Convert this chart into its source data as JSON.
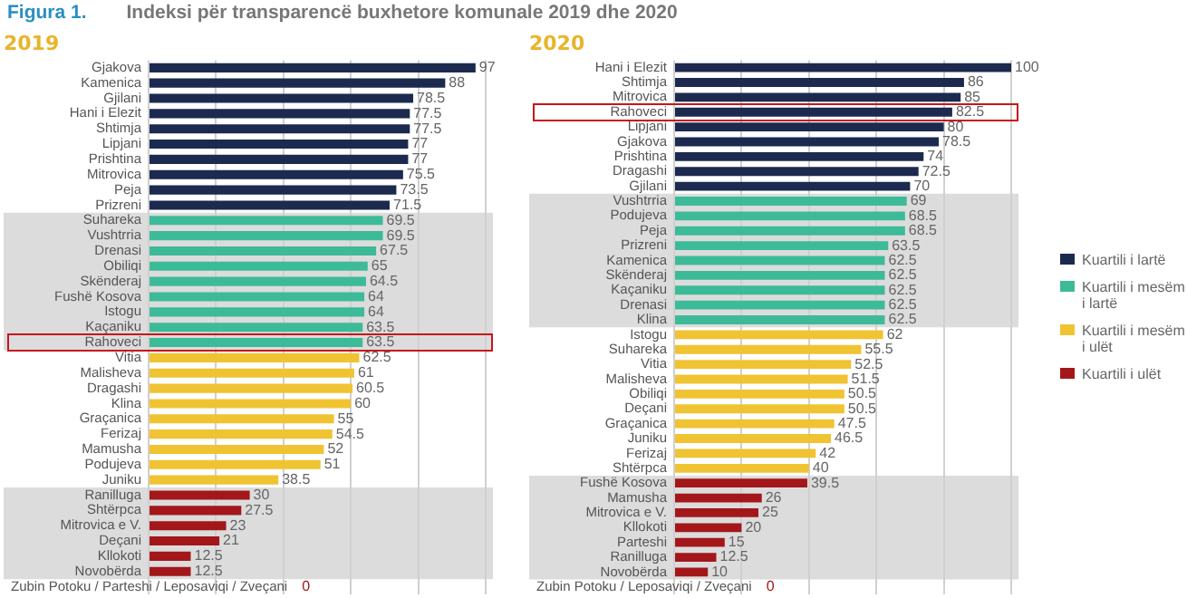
{
  "chart_data": [
    {
      "type": "bar",
      "orientation": "horizontal",
      "stacked": true,
      "title": "Indeksi për transparencë buxhetore komunale 2019 dhe 2020",
      "annotations": [
        "Figura 1.",
        "0"
      ],
      "subtitle": "2019",
      "categories": [
        "Gjakova",
        "Kamenica",
        "Gjilani",
        "Hani i Elezit",
        "Shtimja",
        "Lipjani",
        "Prishtina",
        "Mitrovica",
        "Peja",
        "Prizreni",
        "Suhareka",
        "Vushtrria",
        "Drenasi",
        "Obiliqi",
        "Skënderaj",
        "Fushë Kosova",
        "Istogu",
        "Kaçaniku",
        "Rahoveci",
        "Vitia",
        "Malisheva",
        "Dragashi",
        "Klina",
        "Graçanica",
        "Ferizaj",
        "Mamusha",
        "Podujeva",
        "Juniku",
        "Ranilluga",
        "Shtërpca",
        "Mitrovica e V.",
        "Deçani",
        "Kllokoti",
        "Novobërda",
        "Zubin Potoku / Parteshi / Leposaviqi / Zveçani"
      ],
      "series": [
        {
          "color": "#1b2a4e",
          "values": [
            97,
            88,
            78.5,
            77.5,
            77.5,
            77,
            77,
            75.5,
            73.5,
            71.5,
            null,
            null,
            null,
            null,
            null,
            null,
            null,
            null,
            null,
            null,
            null,
            null,
            null,
            null,
            null,
            null,
            null,
            null,
            null,
            null,
            null,
            null,
            null,
            null,
            null
          ]
        },
        {
          "color": "#3dbb98",
          "values": [
            null,
            null,
            null,
            null,
            null,
            null,
            null,
            null,
            null,
            null,
            69.5,
            69.5,
            67.5,
            65,
            64.5,
            64,
            64,
            63.5,
            63.5,
            null,
            null,
            null,
            null,
            null,
            null,
            null,
            null,
            null,
            null,
            null,
            null,
            null,
            null,
            null,
            null
          ]
        },
        {
          "color": "#f0c332",
          "values": [
            null,
            null,
            null,
            null,
            null,
            null,
            null,
            null,
            null,
            null,
            null,
            null,
            null,
            null,
            null,
            null,
            null,
            null,
            null,
            62.5,
            61,
            60.5,
            60,
            55,
            54.5,
            52,
            51,
            38.5,
            null,
            null,
            null,
            null,
            null,
            null,
            null
          ]
        },
        {
          "color": "#a3171b",
          "values": [
            null,
            null,
            null,
            null,
            null,
            null,
            null,
            null,
            null,
            null,
            null,
            null,
            null,
            null,
            null,
            null,
            null,
            null,
            null,
            null,
            null,
            null,
            null,
            null,
            null,
            null,
            null,
            null,
            30,
            27.5,
            23,
            21,
            12.5,
            12.5,
            0
          ],
          "value_labels": [
            null,
            null,
            null,
            null,
            null,
            null,
            null,
            null,
            null,
            null,
            null,
            null,
            null,
            null,
            null,
            null,
            null,
            null,
            null,
            null,
            null,
            null,
            null,
            null,
            null,
            null,
            null,
            null,
            "30",
            "27.5",
            "23",
            "21",
            "12.5",
            "12.5",
            null
          ]
        }
      ],
      "xlim": [
        0,
        100
      ],
      "xticks": [
        {
          "value": 0,
          "label": null
        },
        {
          "value": 20,
          "label": null
        },
        {
          "value": 40,
          "label": null
        },
        {
          "value": 60,
          "label": null
        },
        {
          "value": 80,
          "label": null
        },
        {
          "value": 100,
          "label": null
        }
      ],
      "tick_labels": "y",
      "grid": "x",
      "data_labels": true,
      "legend": false,
      "bands": [
        {
          "axis": "y",
          "from": "Suhareka",
          "to": "Rahoveci",
          "color": "#dcdcdc"
        },
        {
          "axis": "y",
          "from": "Ranilluga",
          "to": "Novobërda",
          "color": "#dcdcdc"
        }
      ]
    },
    {
      "type": "bar",
      "orientation": "horizontal",
      "stacked": true,
      "subtitle": "2020",
      "categories": [
        "Hani i Elezit",
        "Shtimja",
        "Mitrovica",
        "Rahoveci",
        "Lipjani",
        "Gjakova",
        "Prishtina",
        "Dragashi",
        "Gjilani",
        "Vushtrria",
        "Podujeva",
        "Peja",
        "Prizreni",
        "Kamenica",
        "Skënderaj",
        "Kaçaniku",
        "Drenasi",
        "Klina",
        "Istogu",
        "Suhareka",
        "Vitia",
        "Malisheva",
        "Obiliqi",
        "Deçani",
        "Graçanica",
        "Juniku",
        "Ferizaj",
        "Shtërpca",
        "Fushë Kosova",
        "Mamusha",
        "Mitrovica e V.",
        "Kllokoti",
        "Parteshi",
        "Ranilluga",
        "Novobërda",
        "Zubin Potoku / Leposaviqi / Zveçani"
      ],
      "series": [
        {
          "name": "Kuartili i lartë",
          "color": "#1b2a4e",
          "values": [
            100,
            86,
            85,
            82.5,
            80,
            78.5,
            74,
            72.5,
            70,
            null,
            null,
            null,
            null,
            null,
            null,
            null,
            null,
            null,
            null,
            null,
            null,
            null,
            null,
            null,
            null,
            null,
            null,
            null,
            null,
            null,
            null,
            null,
            null,
            null,
            null,
            null
          ]
        },
        {
          "name": "Kuartili i mesëm i lartë",
          "color": "#3dbb98",
          "values": [
            null,
            null,
            null,
            null,
            null,
            null,
            null,
            null,
            null,
            69,
            68.5,
            68.5,
            63.5,
            62.5,
            62.5,
            62.5,
            62.5,
            62.5,
            null,
            null,
            null,
            null,
            null,
            null,
            null,
            null,
            null,
            null,
            null,
            null,
            null,
            null,
            null,
            null,
            null,
            null
          ]
        },
        {
          "name": "Kuartili i mesëm i ulët",
          "color": "#f0c332",
          "values": [
            null,
            null,
            null,
            null,
            null,
            null,
            null,
            null,
            null,
            null,
            null,
            null,
            null,
            null,
            null,
            null,
            null,
            null,
            62,
            55.5,
            52.5,
            51.5,
            50.5,
            50.5,
            47.5,
            46.5,
            42,
            40,
            null,
            null,
            null,
            null,
            null,
            null,
            null,
            null
          ]
        },
        {
          "name": "Kuartili i ulët",
          "color": "#a3171b",
          "values": [
            null,
            null,
            null,
            null,
            null,
            null,
            null,
            null,
            null,
            null,
            null,
            null,
            null,
            null,
            null,
            null,
            null,
            null,
            null,
            null,
            null,
            null,
            null,
            null,
            null,
            null,
            null,
            null,
            39.5,
            26,
            25,
            20,
            15,
            12.5,
            10,
            0
          ],
          "value_labels": [
            null,
            null,
            null,
            null,
            null,
            null,
            null,
            null,
            null,
            null,
            null,
            null,
            null,
            null,
            null,
            null,
            null,
            null,
            null,
            null,
            null,
            null,
            null,
            null,
            null,
            null,
            null,
            null,
            "39.5",
            "26",
            "25",
            "20",
            "15",
            "12.5",
            "10",
            null
          ]
        }
      ],
      "xlim": [
        0,
        100
      ],
      "xticks": [
        {
          "value": 0,
          "label": null
        },
        {
          "value": 20,
          "label": null
        },
        {
          "value": 40,
          "label": null
        },
        {
          "value": 60,
          "label": null
        },
        {
          "value": 80,
          "label": null
        },
        {
          "value": 100,
          "label": null
        }
      ],
      "tick_labels": "y",
      "grid": "x",
      "data_labels": true,
      "legend": "right",
      "annotations": [
        "0"
      ],
      "bands": [
        {
          "axis": "y",
          "from": "Vushtrria",
          "to": "Klina",
          "color": "#dcdcdc"
        },
        {
          "axis": "y",
          "from": "Fushë Kosova",
          "to": "Novobërda",
          "color": "#dcdcdc"
        }
      ]
    }
  ]
}
